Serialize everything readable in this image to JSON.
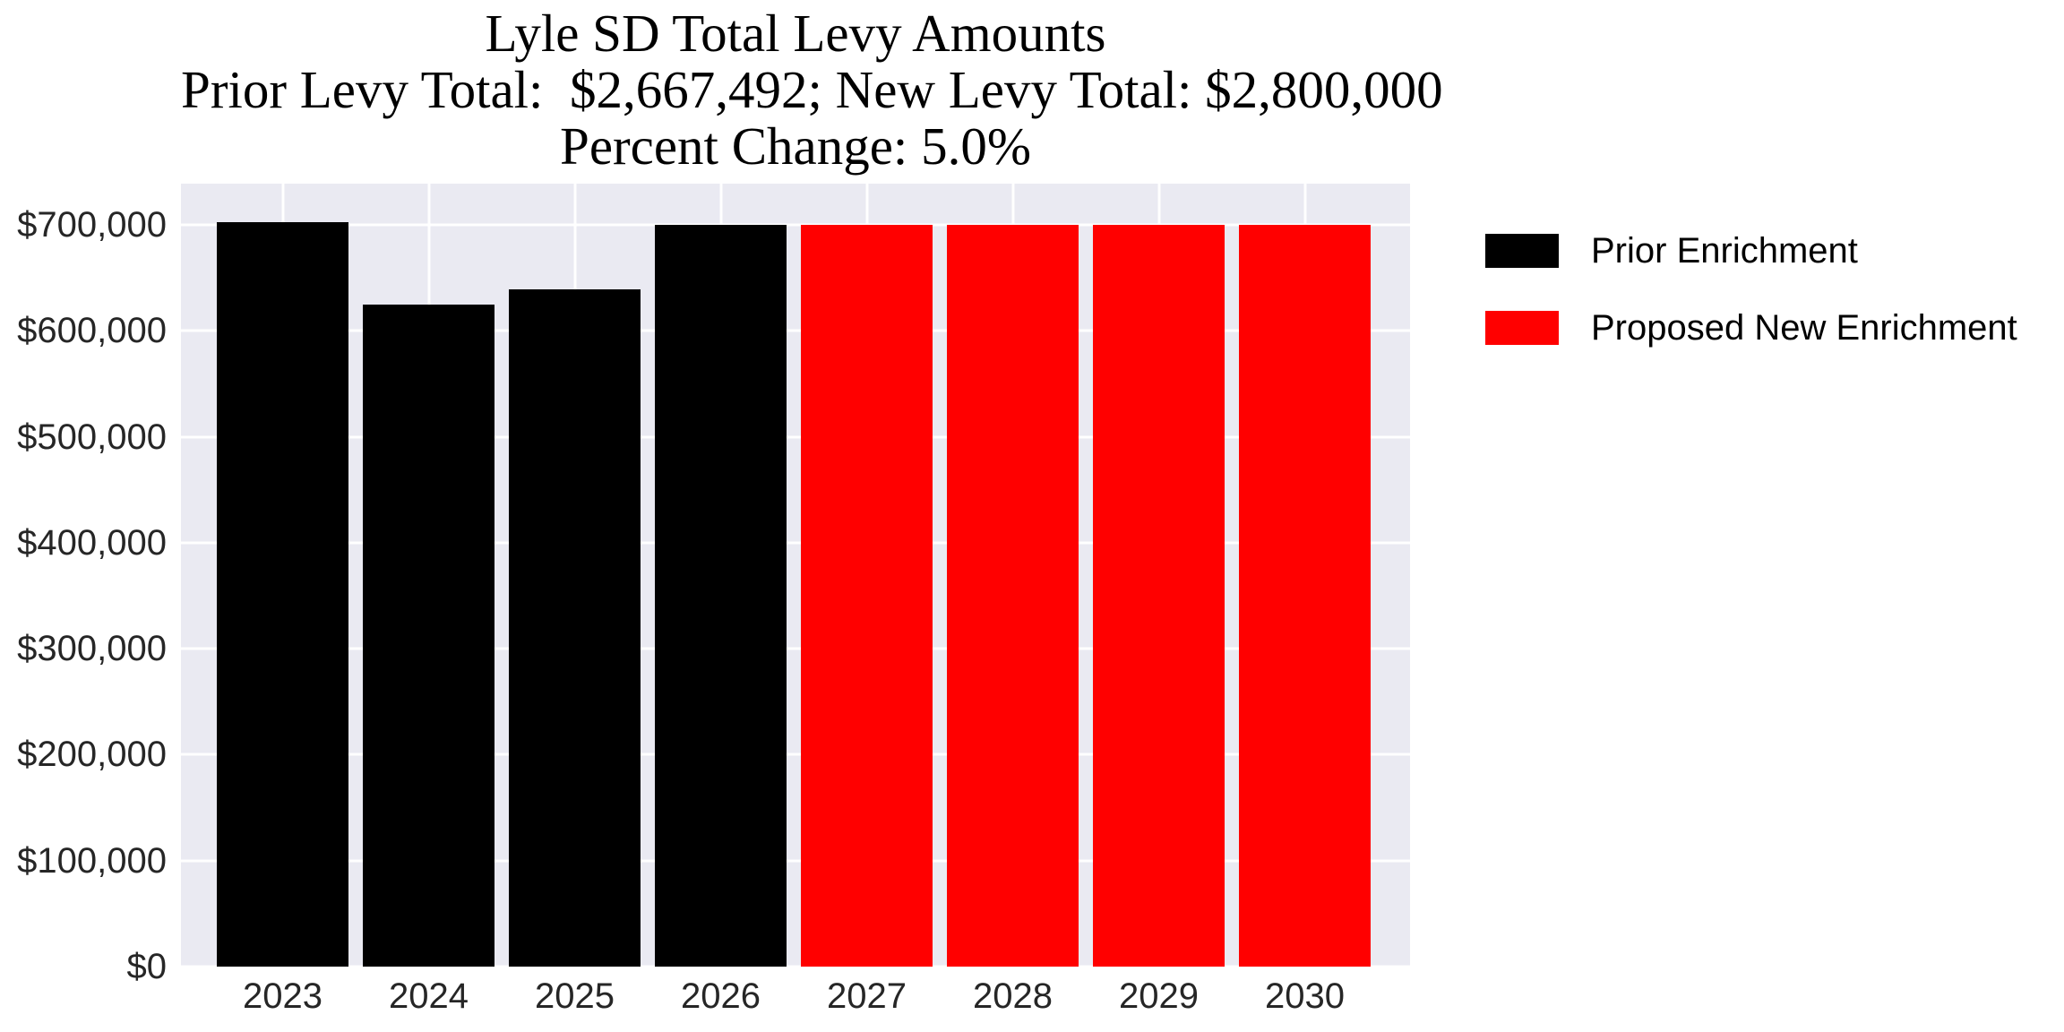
{
  "title": {
    "line1": "Lyle SD Total Levy Amounts",
    "line2": "Prior Levy Total:  $2,667,492; New Levy Total: $2,800,000",
    "line3": "Percent Change: 5.0%"
  },
  "legend": {
    "items": [
      {
        "label": "Prior Enrichment",
        "color": "#000000"
      },
      {
        "label": "Proposed New Enrichment",
        "color": "#ff0000"
      }
    ]
  },
  "chart_data": {
    "type": "bar",
    "title": "Lyle SD Total Levy Amounts",
    "subtitle": "Prior Levy Total:  $2,667,492; New Levy Total: $2,800,000",
    "subtitle2": "Percent Change: 5.0%",
    "categories": [
      "2023",
      "2024",
      "2025",
      "2026",
      "2027",
      "2028",
      "2029",
      "2030"
    ],
    "series": [
      {
        "name": "Prior Enrichment",
        "color": "#000000",
        "values": [
          703000,
          625000,
          639492,
          700000,
          null,
          null,
          null,
          null
        ]
      },
      {
        "name": "Proposed New Enrichment",
        "color": "#ff0000",
        "values": [
          null,
          null,
          null,
          null,
          700000,
          700000,
          700000,
          700000
        ]
      }
    ],
    "totals": {
      "prior_levy_total": "$2,667,492",
      "new_levy_total": "$2,800,000",
      "percent_change": "5.0%"
    },
    "xlabel": "",
    "ylabel": "",
    "yticks": [
      0,
      100000,
      200000,
      300000,
      400000,
      500000,
      600000,
      700000
    ],
    "ytick_labels": [
      "$0",
      "$100,000",
      "$200,000",
      "$300,000",
      "$400,000",
      "$500,000",
      "$600,000",
      "$700,000"
    ],
    "ylim": [
      0,
      739000
    ],
    "grid": true,
    "gridline_color": "#ffffff",
    "plot_background": "#eaeaf2",
    "bar_width_fraction": 0.9,
    "legend_position": "upper right, outside plot"
  },
  "colors": {
    "figure_background": "#ffffff",
    "plot_background": "#eaeaf2",
    "gridline": "#ffffff",
    "tick_text": "#262626",
    "title_text": "#000000",
    "prior_bar": "#000000",
    "proposed_bar": "#ff0000"
  }
}
